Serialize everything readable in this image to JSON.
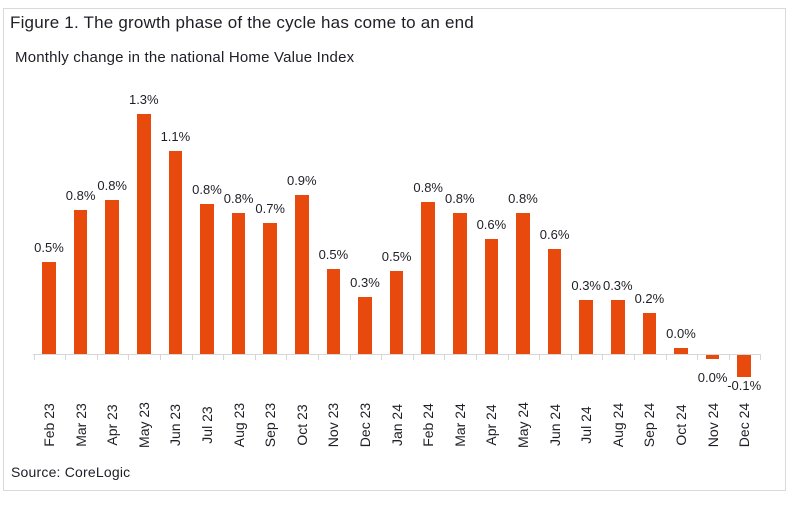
{
  "figure": {
    "title": "Figure 1. The growth phase of the cycle has come to an end",
    "subtitle": "Monthly change in the national Home Value Index",
    "source": "Source: CoreLogic"
  },
  "colors": {
    "bar": "#E8490D",
    "text": "#1E1E26",
    "axis": "#D6D6D6",
    "frame_border": "#D9D9D9",
    "background": "#FFFFFF"
  },
  "chart_data": {
    "type": "bar",
    "title": "Figure 1. The growth phase of the cycle has come to an end",
    "subtitle": "Monthly change in the national Home Value Index",
    "unit": "%",
    "categories": [
      "Feb 23",
      "Mar 23",
      "Apr 23",
      "May 23",
      "Jun 23",
      "Jul 23",
      "Aug 23",
      "Sep 23",
      "Oct 23",
      "Nov 23",
      "Dec 23",
      "Jan 24",
      "Feb 24",
      "Mar 24",
      "Apr 24",
      "May 24",
      "Jun 24",
      "Jul 24",
      "Aug 24",
      "Sep 24",
      "Oct 24",
      "Nov 24",
      "Dec 24"
    ],
    "values": [
      0.5,
      0.8,
      0.8,
      1.3,
      1.1,
      0.8,
      0.8,
      0.7,
      0.9,
      0.5,
      0.3,
      0.5,
      0.8,
      0.8,
      0.6,
      0.8,
      0.6,
      0.3,
      0.3,
      0.2,
      0.0,
      0.0,
      -0.1
    ],
    "value_labels": [
      "0.5%",
      "0.8%",
      "0.8%",
      "1.3%",
      "1.1%",
      "0.8%",
      "0.8%",
      "0.7%",
      "0.9%",
      "0.5%",
      "0.3%",
      "0.5%",
      "0.8%",
      "0.8%",
      "0.6%",
      "0.8%",
      "0.6%",
      "0.3%",
      "0.3%",
      "0.2%",
      "0.0%",
      "0.0%",
      "-0.1%"
    ],
    "bar_render_values": [
      0.5,
      0.78,
      0.83,
      1.3,
      1.1,
      0.81,
      0.76,
      0.71,
      0.86,
      0.46,
      0.31,
      0.45,
      0.82,
      0.76,
      0.62,
      0.76,
      0.57,
      0.29,
      0.29,
      0.22,
      0.03,
      -0.02,
      -0.12
    ],
    "ylim": [
      -0.2,
      1.4
    ],
    "grid": false,
    "legend": null,
    "xlabel": "",
    "ylabel": ""
  }
}
